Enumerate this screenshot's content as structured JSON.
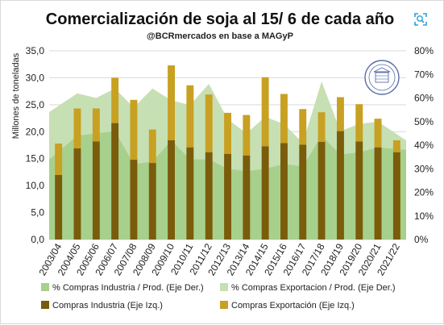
{
  "colors": {
    "industria_bar": "#7a5c0b",
    "exportacion_bar": "#c8a022",
    "industria_area": "#a8d08d",
    "exportacion_area": "#c6e0b4",
    "grid": "#d9d9d9",
    "expand_icon": "#2a9fd6"
  },
  "icons": {
    "expand": "expand-icon",
    "seal": "bcr-seal-logo"
  },
  "chart_data": {
    "type": "bar",
    "title": "Comercialización de soja al 15/ 6 de cada año",
    "subtitle": "@BCRmercados en base a MAGyP",
    "ylabel": "Millones de toneladas",
    "ylim": [
      0,
      35
    ],
    "yticks": [
      "0,0",
      "5,0",
      "10,0",
      "15,0",
      "20,0",
      "25,0",
      "30,0",
      "35,0"
    ],
    "y2lim": [
      0,
      80
    ],
    "y2ticks": [
      "0%",
      "10%",
      "20%",
      "30%",
      "40%",
      "50%",
      "60%",
      "70%",
      "80%"
    ],
    "grid": true,
    "legend_position": "bottom",
    "categories": [
      "2003/04",
      "2004/05",
      "2005/06",
      "2006/07",
      "2007/08",
      "2008/09",
      "2009/10",
      "2010/11",
      "2011/12",
      "2012/13",
      "2013/14",
      "2014/15",
      "2015/16",
      "2016/17",
      "2017/18",
      "2018/19",
      "2019/20",
      "2020/21",
      "2021/22"
    ],
    "series": [
      {
        "name": "Compras Industria (Eje Izq.)",
        "kind": "bar",
        "axis": "left",
        "values": [
          12.0,
          16.9,
          18.2,
          21.6,
          14.8,
          14.2,
          18.4,
          17.1,
          16.2,
          15.9,
          15.6,
          17.3,
          17.9,
          17.6,
          18.1,
          20.1,
          18.2,
          17.1,
          16.2
        ]
      },
      {
        "name": "Compras Exportación (Eje Izq.)",
        "kind": "bar",
        "axis": "left",
        "values": [
          5.8,
          7.4,
          6.1,
          8.4,
          11.1,
          6.2,
          13.9,
          11.5,
          10.7,
          7.6,
          7.5,
          12.8,
          9.1,
          6.6,
          5.5,
          6.3,
          6.9,
          5.3,
          2.2
        ]
      },
      {
        "name": "% Compras Industria / Prod. (Eje Der.)",
        "kind": "area",
        "axis": "right",
        "values": [
          34,
          44,
          45,
          46,
          32,
          33,
          42,
          34,
          34,
          30,
          29,
          30,
          32,
          31,
          44,
          36,
          37,
          39,
          38
        ]
      },
      {
        "name": "% Compras Exportacion / Prod. (Eje Der.)",
        "kind": "area",
        "axis": "right",
        "values": [
          54,
          62,
          60,
          64,
          56,
          64,
          59,
          57,
          66,
          51,
          45,
          52,
          49,
          41,
          67,
          46,
          49,
          50,
          42
        ]
      }
    ]
  }
}
